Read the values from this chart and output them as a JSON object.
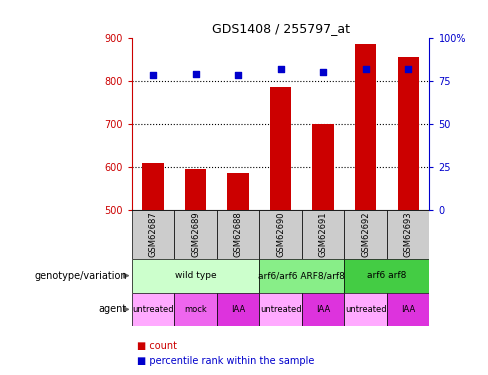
{
  "title": "GDS1408 / 255797_at",
  "samples": [
    "GSM62687",
    "GSM62689",
    "GSM62688",
    "GSM62690",
    "GSM62691",
    "GSM62692",
    "GSM62693"
  ],
  "bar_values": [
    610,
    595,
    585,
    785,
    700,
    885,
    855
  ],
  "percentile_values": [
    78,
    79,
    78,
    82,
    80,
    82,
    82
  ],
  "ylim_left": [
    500,
    900
  ],
  "ylim_right": [
    0,
    100
  ],
  "yticks_left": [
    500,
    600,
    700,
    800,
    900
  ],
  "yticks_right": [
    0,
    25,
    50,
    75,
    100
  ],
  "bar_color": "#cc0000",
  "dot_color": "#0000cc",
  "dotted_line_values": [
    600,
    700,
    800
  ],
  "sample_box_color": "#cccccc",
  "genotype_groups": [
    {
      "label": "wild type",
      "start": 0,
      "end": 3,
      "color": "#ccffcc"
    },
    {
      "label": "arf6/arf6 ARF8/arf8",
      "start": 3,
      "end": 5,
      "color": "#88ee88"
    },
    {
      "label": "arf6 arf8",
      "start": 5,
      "end": 7,
      "color": "#44cc44"
    }
  ],
  "agent_groups": [
    {
      "label": "untreated",
      "start": 0,
      "end": 1,
      "color": "#ffaaff"
    },
    {
      "label": "mock",
      "start": 1,
      "end": 2,
      "color": "#ee66ee"
    },
    {
      "label": "IAA",
      "start": 2,
      "end": 3,
      "color": "#dd33dd"
    },
    {
      "label": "untreated",
      "start": 3,
      "end": 4,
      "color": "#ffaaff"
    },
    {
      "label": "IAA",
      "start": 4,
      "end": 5,
      "color": "#dd33dd"
    },
    {
      "label": "untreated",
      "start": 5,
      "end": 6,
      "color": "#ffaaff"
    },
    {
      "label": "IAA",
      "start": 6,
      "end": 7,
      "color": "#dd33dd"
    }
  ],
  "left_axis_color": "#cc0000",
  "right_axis_color": "#0000cc",
  "legend_items": [
    {
      "label": "count",
      "color": "#cc0000"
    },
    {
      "label": "percentile rank within the sample",
      "color": "#0000cc"
    }
  ]
}
